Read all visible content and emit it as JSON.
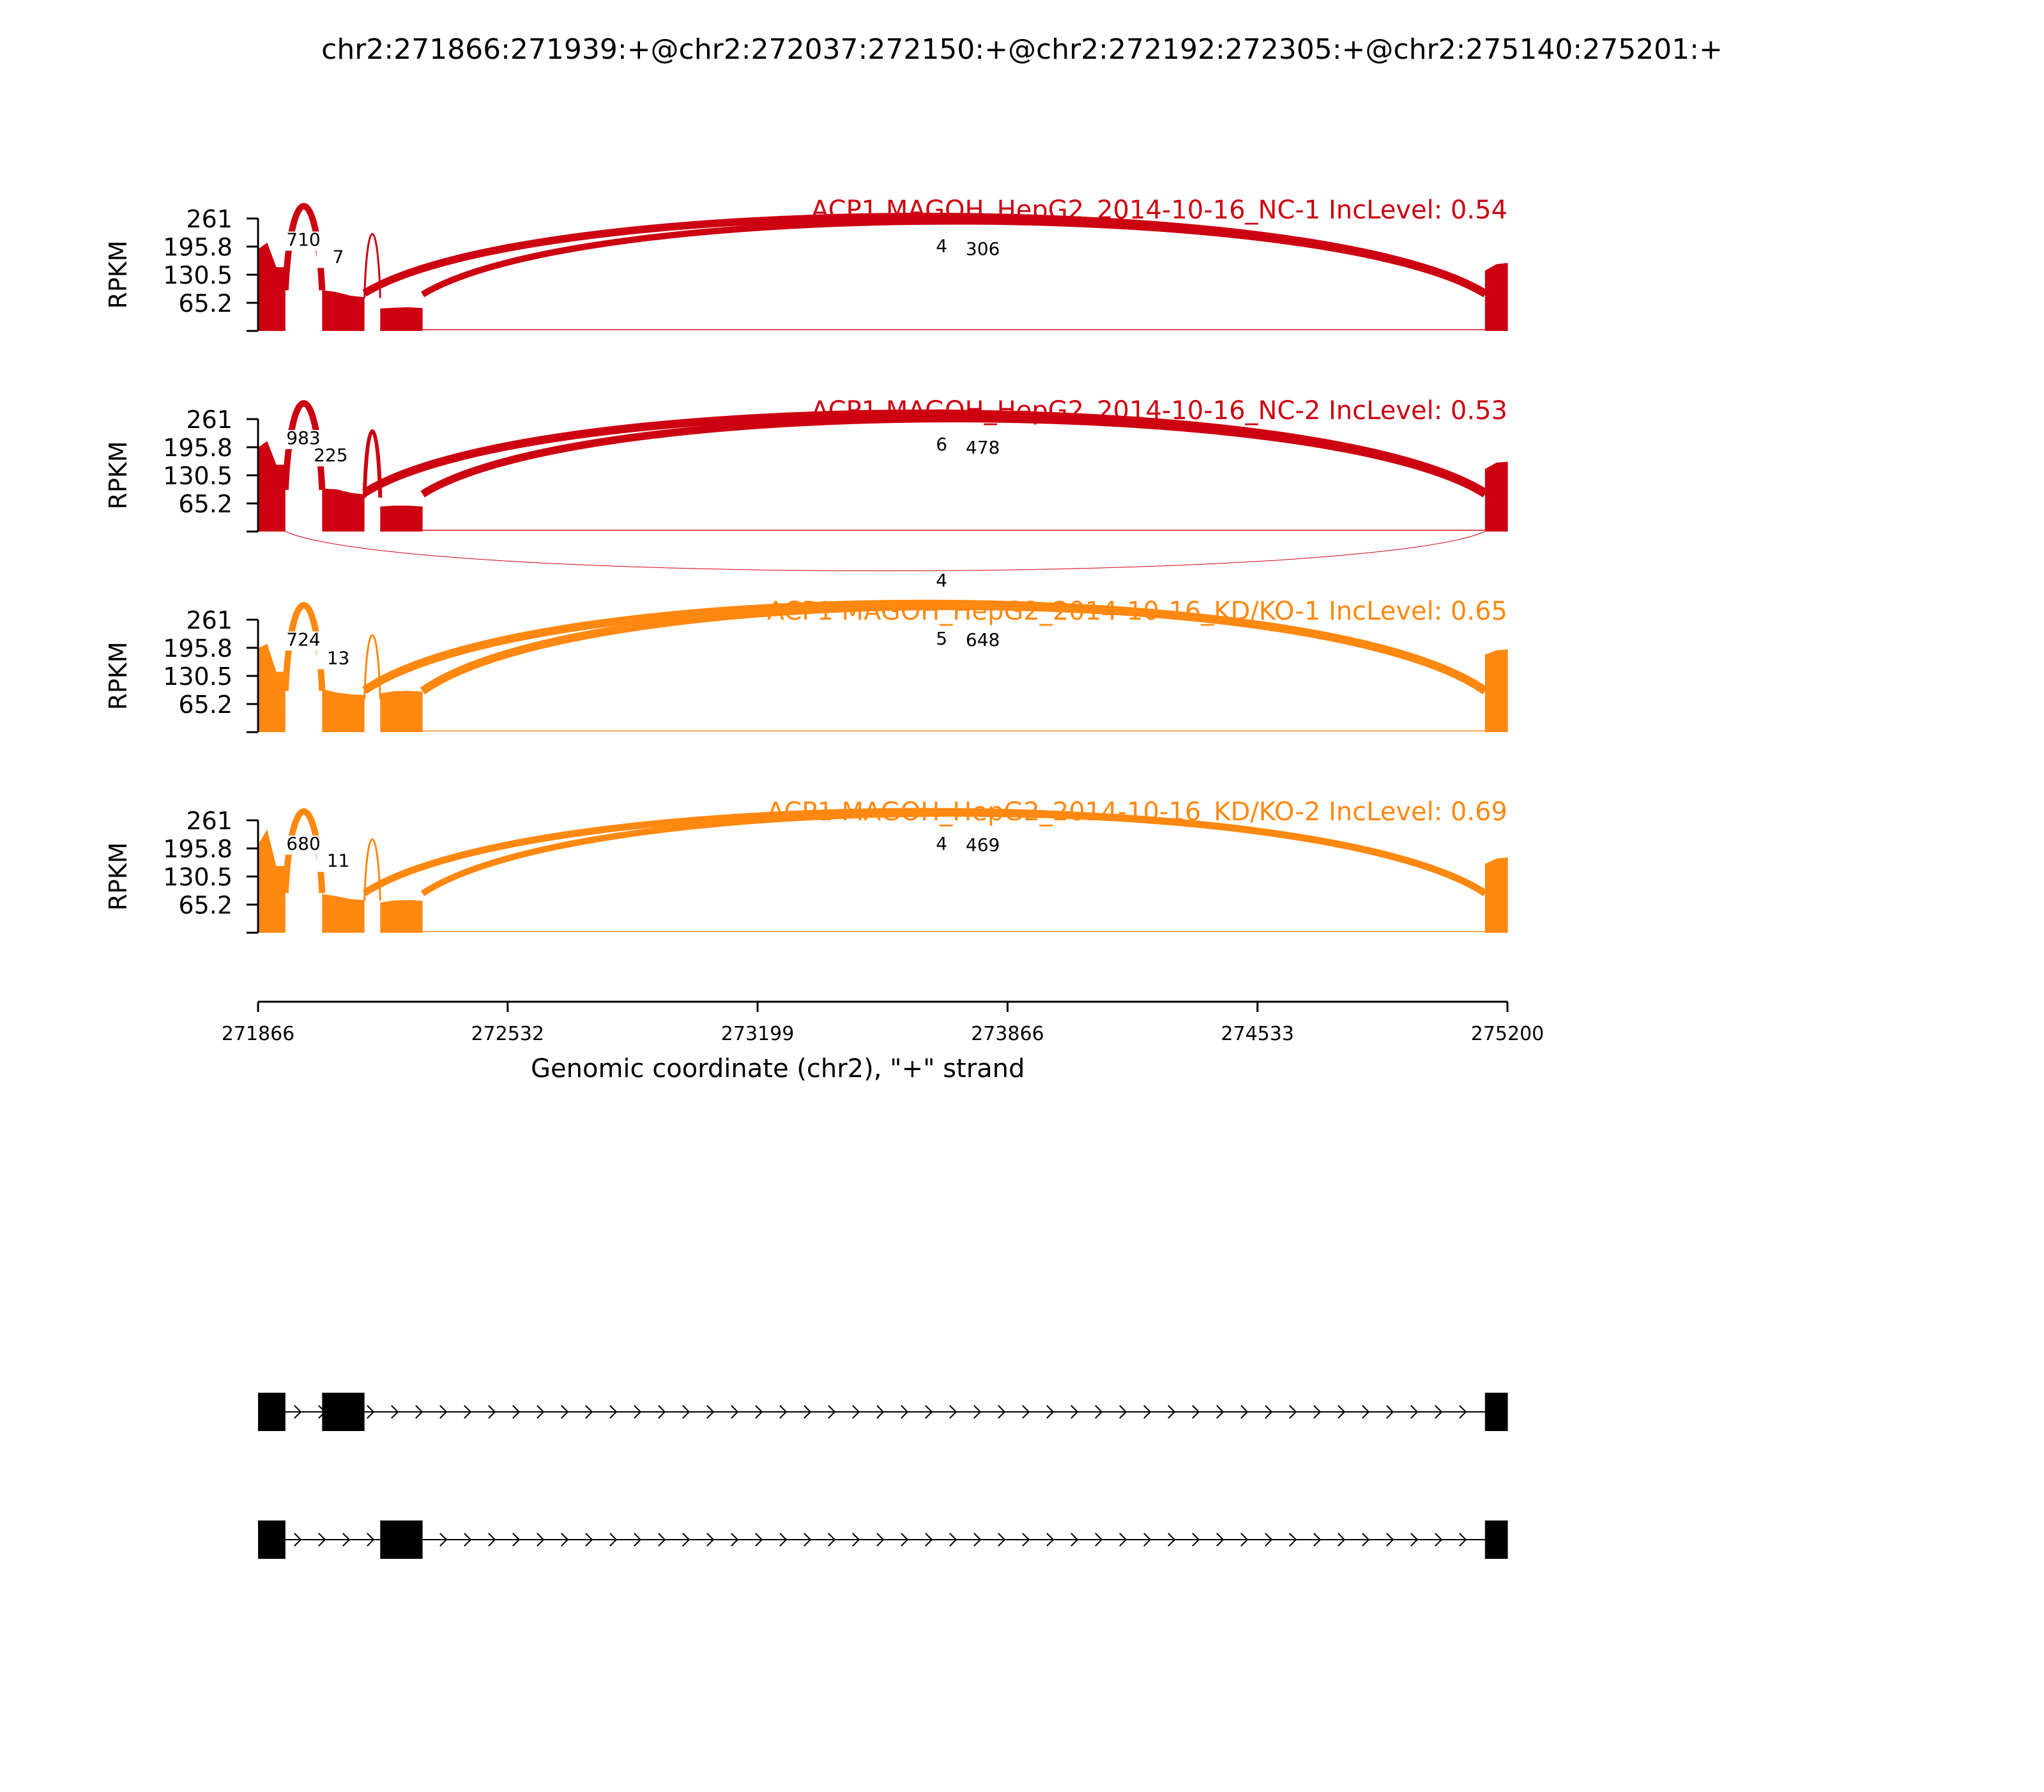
{
  "title": "chr2:271866:271939:+@chr2:272037:272150:+@chr2:272192:272305:+@chr2:275140:275201:+",
  "chart_data": {
    "type": "sashimi",
    "x_range": [
      271866,
      275200
    ],
    "x_ticks": [
      271866,
      272532,
      273199,
      273866,
      274533,
      275200
    ],
    "xlabel": "Genomic coordinate (chr2), \"+\" strand",
    "ylabel": "RPKM",
    "y_range": [
      0,
      261
    ],
    "y_ticks": [
      65.2,
      130.5,
      195.8,
      261
    ],
    "y_tick_labels": [
      "65.2",
      "130.5",
      "195.8",
      "261"
    ],
    "exons": [
      {
        "start": 271866,
        "end": 271939
      },
      {
        "start": 272037,
        "end": 272150
      },
      {
        "start": 272192,
        "end": 272305
      },
      {
        "start": 275140,
        "end": 275201
      }
    ],
    "panels": [
      {
        "label": "ACP1 MAGOH_HepG2_2014-10-16_NC-1 IncLevel: 0.54",
        "color": "#cc0011",
        "coverage": [
          {
            "start": 271866,
            "end": 271939,
            "values": [
              190,
              205,
              148,
              148
            ]
          },
          {
            "start": 272037,
            "end": 272150,
            "values": [
              95,
              90,
              82,
              78
            ]
          },
          {
            "start": 272192,
            "end": 272305,
            "values": [
              52,
              54,
              55,
              53
            ]
          },
          {
            "start": 275140,
            "end": 275201,
            "values": [
              140,
              155,
              158
            ]
          }
        ],
        "junctions": [
          {
            "from": 271939,
            "to": 272037,
            "count": "710",
            "peak": 210,
            "side": "top",
            "weight": 10,
            "label_x": 271987
          },
          {
            "from": 272150,
            "to": 272192,
            "count": "7",
            "peak": 170,
            "side": "top",
            "weight": 3,
            "label_x": 272080
          },
          {
            "from": 272150,
            "to": 275140,
            "count": "4",
            "peak": 195,
            "side": "top",
            "weight": 12,
            "label_x": 273690
          },
          {
            "from": 272305,
            "to": 275140,
            "count": "306",
            "peak": 188,
            "side": "top",
            "weight": 10,
            "label_x": 273800
          }
        ]
      },
      {
        "label": "ACP1 MAGOH_HepG2_2014-10-16_NC-2 IncLevel: 0.53",
        "color": "#cc0011",
        "coverage": [
          {
            "start": 271866,
            "end": 271939,
            "values": [
              195,
              210,
              155,
              155
            ]
          },
          {
            "start": 272037,
            "end": 272150,
            "values": [
              100,
              98,
              90,
              86
            ]
          },
          {
            "start": 272192,
            "end": 272305,
            "values": [
              58,
              60,
              60,
              58
            ]
          },
          {
            "start": 275140,
            "end": 275201,
            "values": [
              145,
              160,
              162
            ]
          }
        ],
        "junctions": [
          {
            "from": 271939,
            "to": 272037,
            "count": "983",
            "peak": 215,
            "side": "top",
            "weight": 10,
            "label_x": 271987
          },
          {
            "from": 272150,
            "to": 272192,
            "count": "225",
            "peak": 175,
            "side": "top",
            "weight": 6,
            "label_x": 272060
          },
          {
            "from": 272150,
            "to": 275140,
            "count": "6",
            "peak": 200,
            "side": "top",
            "weight": 13,
            "label_x": 273690
          },
          {
            "from": 272305,
            "to": 275140,
            "count": "478",
            "peak": 193,
            "side": "top",
            "weight": 12,
            "label_x": 273800
          },
          {
            "from": 271939,
            "to": 275140,
            "count": "4",
            "peak": 70,
            "side": "bottom",
            "weight": 1,
            "label_x": 273690
          }
        ]
      },
      {
        "label": "ACP1 MAGOH_HepG2_2014-10-16_KD/KO-1 IncLevel: 0.65",
        "color": "#ff8811",
        "coverage": [
          {
            "start": 271866,
            "end": 271939,
            "values": [
              195,
              205,
              140,
              140
            ]
          },
          {
            "start": 272037,
            "end": 272150,
            "values": [
              100,
              92,
              88,
              86
            ]
          },
          {
            "start": 272192,
            "end": 272305,
            "values": [
              90,
              95,
              96,
              94
            ]
          },
          {
            "start": 275140,
            "end": 275201,
            "values": [
              180,
              190,
              192
            ]
          }
        ],
        "junctions": [
          {
            "from": 271939,
            "to": 272037,
            "count": "724",
            "peak": 213,
            "side": "top",
            "weight": 10,
            "label_x": 271987
          },
          {
            "from": 272150,
            "to": 272192,
            "count": "13",
            "peak": 170,
            "side": "top",
            "weight": 3,
            "label_x": 272080
          },
          {
            "from": 272150,
            "to": 275140,
            "count": "5",
            "peak": 215,
            "side": "top",
            "weight": 13,
            "label_x": 273690
          },
          {
            "from": 272305,
            "to": 275140,
            "count": "648",
            "peak": 212,
            "side": "top",
            "weight": 13,
            "label_x": 273800
          }
        ]
      },
      {
        "label": "ACP1 MAGOH_HepG2_2014-10-16_KD/KO-2 IncLevel: 0.69",
        "color": "#ff8811",
        "coverage": [
          {
            "start": 271866,
            "end": 271939,
            "values": [
              205,
              240,
              155,
              155
            ]
          },
          {
            "start": 272037,
            "end": 272150,
            "values": [
              90,
              85,
              78,
              76
            ]
          },
          {
            "start": 272192,
            "end": 272305,
            "values": [
              70,
              75,
              76,
              74
            ]
          },
          {
            "start": 275140,
            "end": 275201,
            "values": [
              160,
              172,
              175
            ]
          }
        ],
        "junctions": [
          {
            "from": 271939,
            "to": 272037,
            "count": "680",
            "peak": 205,
            "side": "top",
            "weight": 10,
            "label_x": 271987
          },
          {
            "from": 272150,
            "to": 272192,
            "count": "11",
            "peak": 165,
            "side": "top",
            "weight": 3,
            "label_x": 272080
          },
          {
            "from": 272150,
            "to": 275140,
            "count": "4",
            "peak": 205,
            "side": "top",
            "weight": 11,
            "label_x": 273690
          },
          {
            "from": 272305,
            "to": 275140,
            "count": "469",
            "peak": 202,
            "side": "top",
            "weight": 10,
            "label_x": 273800
          }
        ]
      }
    ],
    "isoforms": [
      {
        "exons": [
          [
            271866,
            271939
          ],
          [
            272037,
            272150
          ],
          [
            275140,
            275201
          ]
        ]
      },
      {
        "exons": [
          [
            271866,
            271939
          ],
          [
            272192,
            272305
          ],
          [
            275140,
            275201
          ]
        ]
      }
    ]
  }
}
